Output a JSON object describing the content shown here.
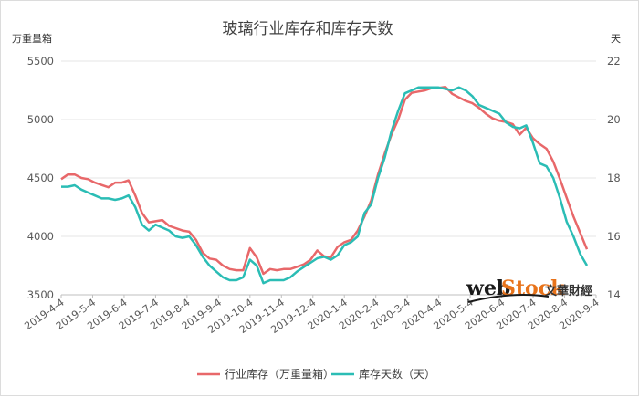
{
  "chart_data": {
    "type": "line",
    "title": "玻璃行业库存和库存天数",
    "left_unit": "万重量箱",
    "right_unit": "天",
    "y_left": {
      "min": 3500,
      "max": 5500,
      "ticks": [
        3500,
        4000,
        4500,
        5000,
        5500
      ]
    },
    "y_right": {
      "min": 14,
      "max": 22,
      "ticks": [
        14,
        16,
        18,
        20,
        22
      ]
    },
    "x_tick_labels": [
      "2019-4-4",
      "2019-5-4",
      "2019-6-4",
      "2019-7-4",
      "2019-8-4",
      "2019-9-4",
      "2019-10-4",
      "2019-11-4",
      "2019-12-4",
      "2020-1-4",
      "2020-2-4",
      "2020-3-4",
      "2020-4-4",
      "2020-5-4",
      "2020-6-4",
      "2020-7-4",
      "2020-8-4",
      "2020-9-4"
    ],
    "grid": "horizontal",
    "legend_position": "bottom",
    "series": [
      {
        "name": "行业库存（万重量箱）",
        "axis": "left",
        "color": "#e8686a",
        "values": [
          4490,
          4530,
          4530,
          4500,
          4490,
          4460,
          4440,
          4420,
          4460,
          4460,
          4480,
          4350,
          4200,
          4120,
          4130,
          4140,
          4090,
          4070,
          4050,
          4040,
          3970,
          3860,
          3810,
          3800,
          3750,
          3720,
          3710,
          3710,
          3900,
          3820,
          3680,
          3720,
          3710,
          3720,
          3720,
          3740,
          3760,
          3800,
          3880,
          3830,
          3820,
          3910,
          3950,
          3970,
          4050,
          4170,
          4310,
          4530,
          4710,
          4870,
          5000,
          5170,
          5230,
          5240,
          5250,
          5270,
          5270,
          5280,
          5220,
          5190,
          5160,
          5140,
          5100,
          5050,
          5010,
          4990,
          4980,
          4960,
          4870,
          4930,
          4840,
          4790,
          4750,
          4640,
          4490,
          4330,
          4170,
          4030,
          3890
        ]
      },
      {
        "name": "库存天数（天）",
        "axis": "right",
        "color": "#2bbdb5",
        "values": [
          17.7,
          17.7,
          17.75,
          17.6,
          17.5,
          17.4,
          17.3,
          17.3,
          17.25,
          17.3,
          17.4,
          17.0,
          16.4,
          16.2,
          16.4,
          16.3,
          16.2,
          16.0,
          15.95,
          16.0,
          15.7,
          15.3,
          15.0,
          14.8,
          14.6,
          14.5,
          14.5,
          14.6,
          15.2,
          15.0,
          14.4,
          14.5,
          14.5,
          14.5,
          14.6,
          14.8,
          14.95,
          15.1,
          15.25,
          15.3,
          15.2,
          15.35,
          15.7,
          15.8,
          16.0,
          16.8,
          17.1,
          18.0,
          18.7,
          19.6,
          20.3,
          20.9,
          21.0,
          21.1,
          21.1,
          21.1,
          21.1,
          21.05,
          21.0,
          21.1,
          21.0,
          20.8,
          20.5,
          20.4,
          20.3,
          20.2,
          19.9,
          19.75,
          19.7,
          19.8,
          19.2,
          18.5,
          18.4,
          18.0,
          17.3,
          16.5,
          16.0,
          15.4,
          15.0
        ]
      }
    ]
  },
  "watermark": {
    "brand_web": "web",
    "brand_stock": "Stock",
    "brand_cn": "文華財經"
  }
}
